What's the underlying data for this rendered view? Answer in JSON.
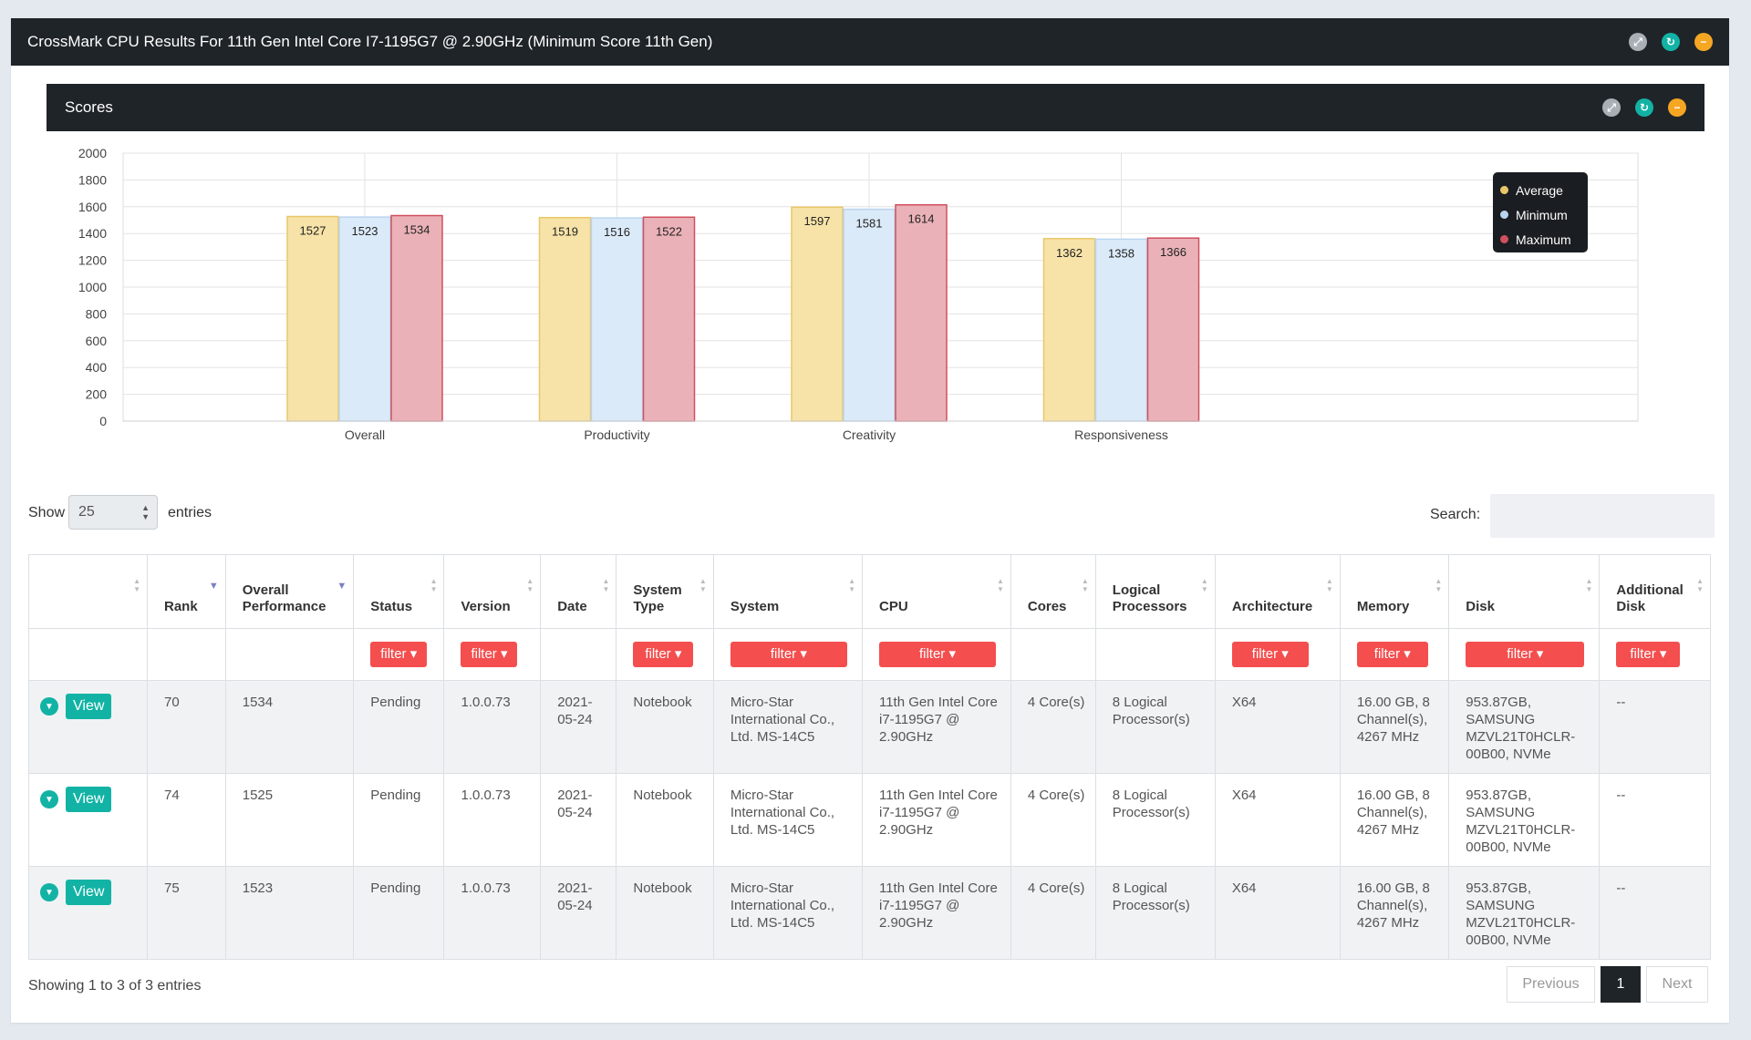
{
  "window": {
    "title": "CrossMark CPU Results For 11th Gen Intel Core I7-1195G7 @ 2.90GHz (Minimum Score 11th Gen)"
  },
  "scores_panel": {
    "title": "Scores"
  },
  "colors": {
    "average_fill": "#f7e3a8",
    "average_stroke": "#e9c769",
    "minimum_fill": "#dbeaf9",
    "minimum_stroke": "#b9d4ef",
    "maximum_fill": "#eab2b8",
    "maximum_stroke": "#d0505d",
    "accent_teal": "#12b3a5",
    "filter_red": "#f44e4e",
    "header_dark": "#1f2429"
  },
  "chart_data": {
    "type": "bar",
    "categories": [
      "Overall",
      "Productivity",
      "Creativity",
      "Responsiveness"
    ],
    "series": [
      {
        "name": "Average",
        "values": [
          1527,
          1519,
          1597,
          1362
        ]
      },
      {
        "name": "Minimum",
        "values": [
          1523,
          1516,
          1581,
          1358
        ]
      },
      {
        "name": "Maximum",
        "values": [
          1534,
          1522,
          1614,
          1366
        ]
      }
    ],
    "ylim": [
      0,
      2000
    ],
    "yticks": [
      0,
      200,
      400,
      600,
      800,
      1000,
      1200,
      1400,
      1600,
      1800,
      2000
    ],
    "grid": true,
    "legend_position": "top-right"
  },
  "table_controls": {
    "show_label": "Show",
    "page_size": "25",
    "entries_label": "entries",
    "search_label": "Search:",
    "search_value": ""
  },
  "table": {
    "headers": [
      {
        "key": "ctrl",
        "label": ""
      },
      {
        "key": "rank",
        "label": "Rank"
      },
      {
        "key": "overall",
        "label": "Overall Performance"
      },
      {
        "key": "status",
        "label": "Status"
      },
      {
        "key": "version",
        "label": "Version"
      },
      {
        "key": "date",
        "label": "Date"
      },
      {
        "key": "system_type",
        "label": "System Type"
      },
      {
        "key": "system",
        "label": "System"
      },
      {
        "key": "cpu",
        "label": "CPU"
      },
      {
        "key": "cores",
        "label": "Cores"
      },
      {
        "key": "logical",
        "label": "Logical Processors"
      },
      {
        "key": "arch",
        "label": "Architecture"
      },
      {
        "key": "memory",
        "label": "Memory"
      },
      {
        "key": "disk",
        "label": "Disk"
      },
      {
        "key": "add_disk",
        "label": "Additional Disk"
      }
    ],
    "filter_label": "filter",
    "view_label": "View",
    "rows": [
      {
        "rank": "70",
        "overall": "1534",
        "status": "Pending",
        "version": "1.0.0.73",
        "date": "2021-05-24",
        "system_type": "Notebook",
        "system": "Micro-Star International Co., Ltd. MS-14C5",
        "cpu": "11th Gen Intel Core i7-1195G7 @ 2.90GHz",
        "cores": "4 Core(s)",
        "logical": "8 Logical Processor(s)",
        "arch": "X64",
        "memory": "16.00 GB, 8 Channel(s), 4267 MHz",
        "disk": "953.87GB, SAMSUNG MZVL21T0HCLR-00B00, NVMe",
        "add_disk": "--"
      },
      {
        "rank": "74",
        "overall": "1525",
        "status": "Pending",
        "version": "1.0.0.73",
        "date": "2021-05-24",
        "system_type": "Notebook",
        "system": "Micro-Star International Co., Ltd. MS-14C5",
        "cpu": "11th Gen Intel Core i7-1195G7 @ 2.90GHz",
        "cores": "4 Core(s)",
        "logical": "8 Logical Processor(s)",
        "arch": "X64",
        "memory": "16.00 GB, 8 Channel(s), 4267 MHz",
        "disk": "953.87GB, SAMSUNG MZVL21T0HCLR-00B00, NVMe",
        "add_disk": "--"
      },
      {
        "rank": "75",
        "overall": "1523",
        "status": "Pending",
        "version": "1.0.0.73",
        "date": "2021-05-24",
        "system_type": "Notebook",
        "system": "Micro-Star International Co., Ltd. MS-14C5",
        "cpu": "11th Gen Intel Core i7-1195G7 @ 2.90GHz",
        "cores": "4 Core(s)",
        "logical": "8 Logical Processor(s)",
        "arch": "X64",
        "memory": "16.00 GB, 8 Channel(s), 4267 MHz",
        "disk": "953.87GB, SAMSUNG MZVL21T0HCLR-00B00, NVMe",
        "add_disk": "--"
      }
    ]
  },
  "footer": {
    "showing": "Showing 1 to 3 of 3 entries",
    "previous": "Previous",
    "current_page": "1",
    "next": "Next"
  },
  "icons": {
    "panel_controls": [
      "expand-icon",
      "refresh-icon",
      "minimize-icon"
    ],
    "row_expand": "chevron-down-icon"
  }
}
